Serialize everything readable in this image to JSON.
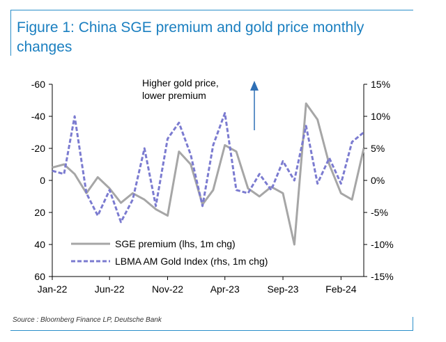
{
  "title": "Figure 1: China SGE premium and gold price monthly changes",
  "source": "Source : Bloomberg Finance LP, Deutsche Bank",
  "chart_data": {
    "type": "line",
    "x_ticks": [
      "Jan-22",
      "Jun-22",
      "Nov-22",
      "Apr-23",
      "Sep-23",
      "Feb-24"
    ],
    "y_left": {
      "ticks": [
        "-60",
        "-40",
        "-20",
        "0",
        "20",
        "40",
        "60"
      ],
      "range": [
        -60,
        60
      ],
      "inverted": true
    },
    "y_right": {
      "ticks": [
        "15%",
        "10%",
        "5%",
        "0%",
        "-5%",
        "-10%",
        "-15%"
      ],
      "range": [
        -15,
        15
      ]
    },
    "annotation": [
      "Higher gold price,",
      "lower premium"
    ],
    "colors": {
      "sge": "#a6a6a6",
      "lbma": "#7b7bd0",
      "annotation_arrow": "#2e6fb5"
    },
    "series": [
      {
        "name": "SGE premium (lhs, 1m chg)",
        "axis": "left",
        "style": "solid",
        "x": [
          "2022-01-01",
          "2022-02-01",
          "2022-03-01",
          "2022-04-01",
          "2022-05-01",
          "2022-06-01",
          "2022-07-01",
          "2022-08-01",
          "2022-09-01",
          "2022-10-01",
          "2022-11-01",
          "2022-12-01",
          "2023-01-01",
          "2023-02-01",
          "2023-03-01",
          "2023-04-01",
          "2023-05-01",
          "2023-06-01",
          "2023-07-01",
          "2023-08-01",
          "2023-09-01",
          "2023-10-01",
          "2023-11-01",
          "2023-12-01",
          "2024-01-01",
          "2024-02-01",
          "2024-03-01",
          "2024-04-01"
        ],
        "values": [
          -8,
          -10,
          -4,
          8,
          -2,
          5,
          14,
          8,
          12,
          18,
          22,
          -18,
          -10,
          15,
          6,
          -22,
          -18,
          5,
          10,
          4,
          8,
          40,
          -48,
          -38,
          -10,
          8,
          12,
          -20
        ]
      },
      {
        "name": "LBMA AM Gold Index (rhs, 1m chg)",
        "axis": "right",
        "style": "dashed",
        "x": [
          "2022-01-01",
          "2022-02-01",
          "2022-03-01",
          "2022-04-01",
          "2022-05-01",
          "2022-06-01",
          "2022-07-01",
          "2022-08-01",
          "2022-09-01",
          "2022-10-01",
          "2022-11-01",
          "2022-12-01",
          "2023-01-01",
          "2023-02-01",
          "2023-03-01",
          "2023-04-01",
          "2023-05-01",
          "2023-06-01",
          "2023-07-01",
          "2023-08-01",
          "2023-09-01",
          "2023-10-01",
          "2023-11-01",
          "2023-12-01",
          "2024-01-01",
          "2024-02-01",
          "2024-03-01",
          "2024-04-01"
        ],
        "values": [
          1.5,
          1.0,
          10.0,
          -2.0,
          -5.5,
          -1.5,
          -6.5,
          -3.0,
          5.0,
          -4.0,
          6.5,
          9.0,
          4.0,
          -4.0,
          5.5,
          10.5,
          -1.5,
          -2.0,
          1.0,
          -1.5,
          3.0,
          0.0,
          8.5,
          -0.5,
          3.5,
          -0.5,
          6.0,
          7.5
        ]
      }
    ]
  }
}
